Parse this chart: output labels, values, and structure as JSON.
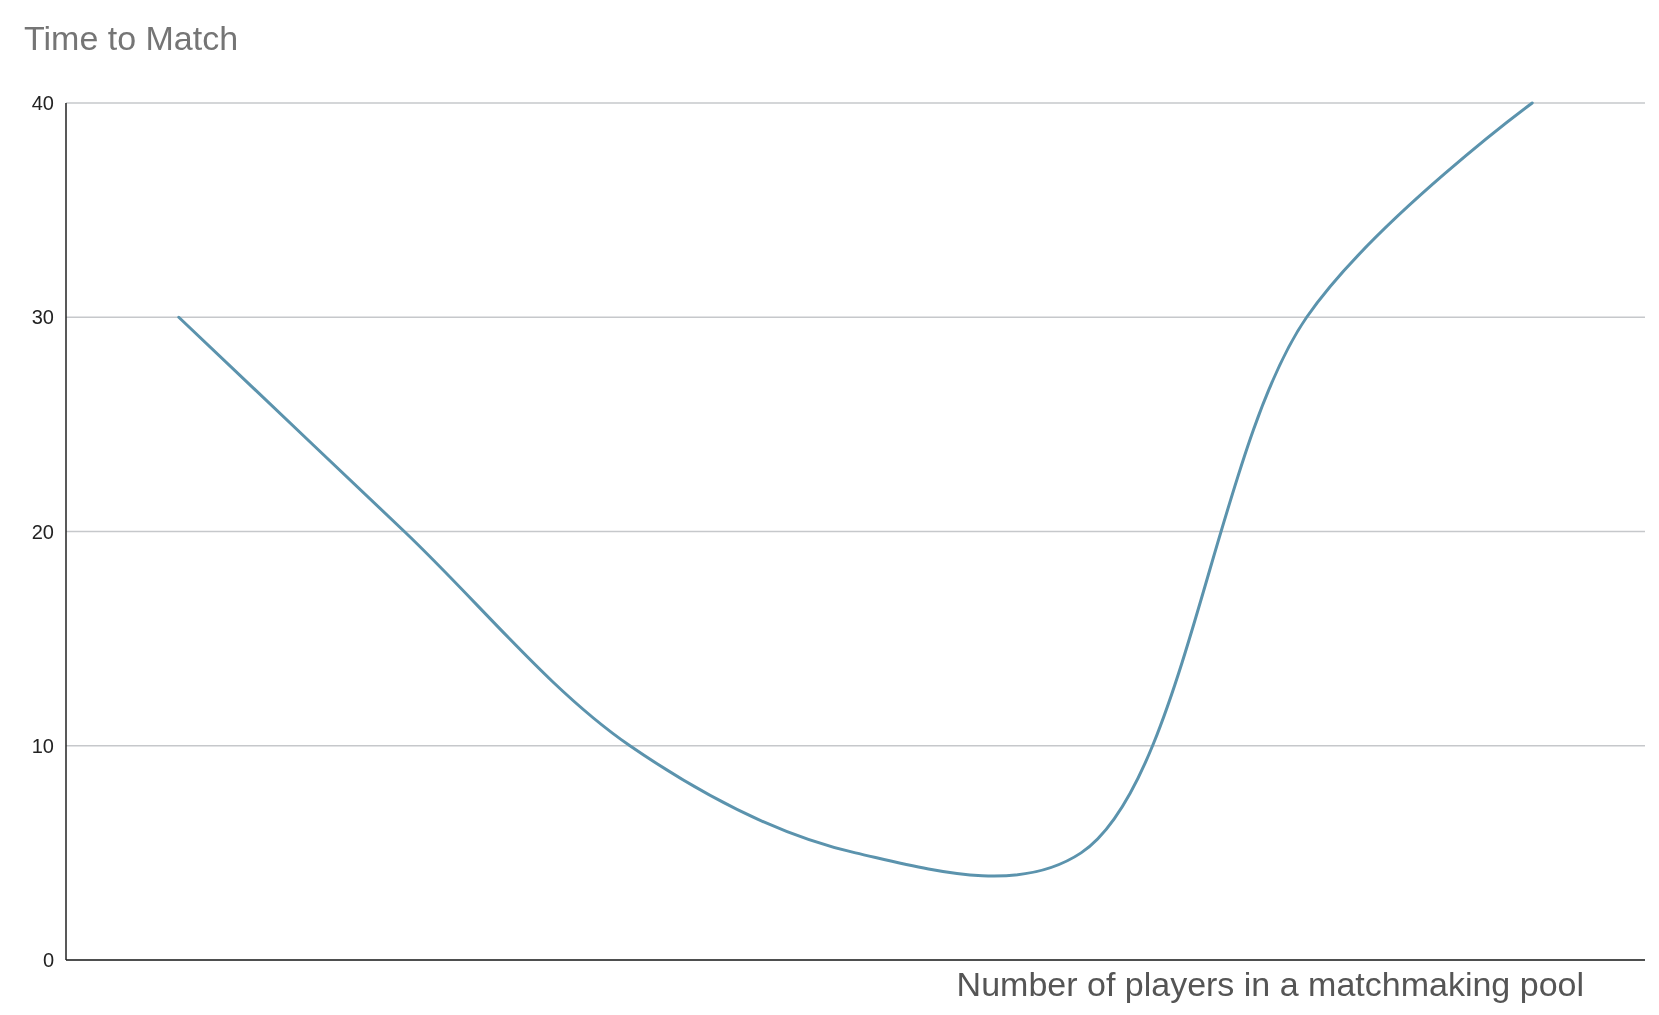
{
  "chart_data": {
    "type": "line",
    "title": "Time to Match",
    "xlabel": "Number of players in a matchmaking pool",
    "categories": [
      null,
      null,
      null,
      null,
      null,
      null,
      null
    ],
    "series": [
      {
        "color": "#5b93ad",
        "values": [
          30,
          20,
          10,
          5,
          5,
          30,
          40
        ]
      }
    ],
    "ylim": [
      0,
      40
    ],
    "yticks": [
      0,
      10,
      20,
      30,
      40
    ],
    "grid": "y",
    "marker": "none",
    "line_style": "solid"
  }
}
